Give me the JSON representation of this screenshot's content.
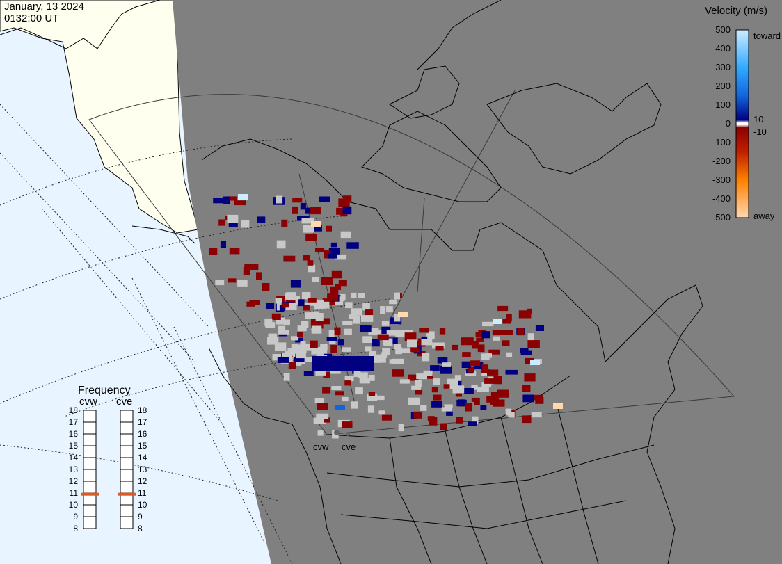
{
  "header": {
    "date": "January, 13 2024",
    "time": "0132:00 UT"
  },
  "colorbar": {
    "title": "Velocity (m/s)",
    "ticks": [
      "500",
      "400",
      "300",
      "200",
      "100",
      "10",
      "0",
      "-10",
      "-100",
      "-200",
      "-300",
      "-400",
      "-500"
    ],
    "toward_label": "toward",
    "away_label": "away",
    "colors": {
      "toward_top": "#ccecff",
      "toward_mid": "#1166dd",
      "toward_low": "#000080",
      "away_low": "#8b0000",
      "away_mid": "#e05a00",
      "away_top": "#ffd8b0"
    }
  },
  "frequency_panel": {
    "title": "Frequency",
    "radars": [
      {
        "code": "cvw",
        "frequency_mhz": 10.9
      },
      {
        "code": "cve",
        "frequency_mhz": 10.9
      }
    ],
    "scale": [
      "18",
      "17",
      "16",
      "15",
      "14",
      "13",
      "12",
      "11",
      "10",
      "9",
      "8"
    ],
    "marker_color": "#e05a20"
  },
  "radar_sites": {
    "cvw_label": "cvw",
    "cve_label": "cve"
  },
  "map_colors": {
    "ocean": "#e8f4ff",
    "land_daylight": "#fffff0",
    "night_shade": "#808080",
    "scatter_gray": "#c8c8c8",
    "coast_line": "#000000"
  }
}
